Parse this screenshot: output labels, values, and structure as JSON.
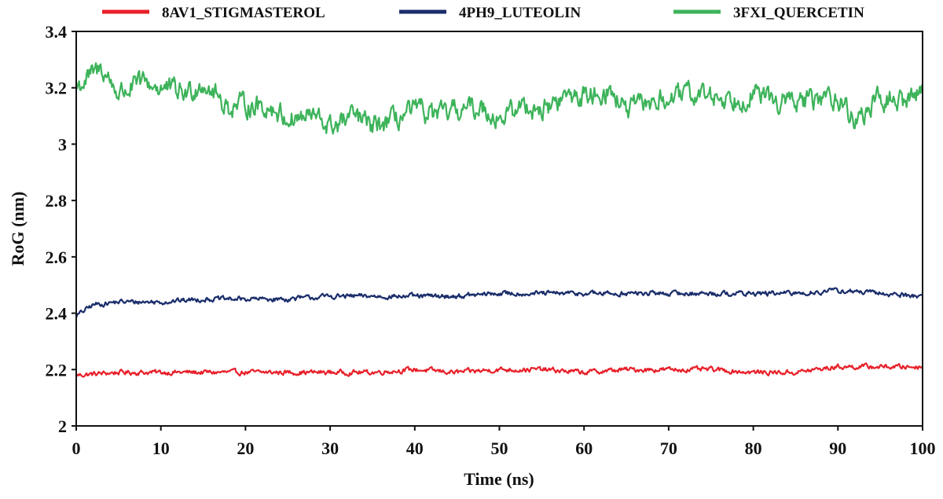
{
  "chart_data": {
    "type": "line",
    "xlabel": "Time (ns)",
    "ylabel": "RoG (nm)",
    "xlim": [
      0,
      100
    ],
    "ylim": [
      2,
      3.4
    ],
    "xticks": [
      "0",
      "10",
      "20",
      "30",
      "40",
      "50",
      "60",
      "70",
      "80",
      "90",
      "100"
    ],
    "yticks": [
      "2",
      "2.2",
      "2.4",
      "2.6",
      "2.8",
      "3",
      "3.2",
      "3.4"
    ],
    "grid": false,
    "legend_position": "top",
    "series": [
      {
        "name": "8AV1_STIGMASTEROL",
        "color": "#e8202a",
        "x": [
          0,
          5,
          10,
          15,
          20,
          25,
          30,
          35,
          40,
          45,
          50,
          55,
          60,
          65,
          70,
          75,
          80,
          85,
          90,
          95,
          100
        ],
        "y": [
          2.18,
          2.19,
          2.19,
          2.19,
          2.19,
          2.19,
          2.19,
          2.19,
          2.2,
          2.19,
          2.2,
          2.2,
          2.19,
          2.2,
          2.2,
          2.2,
          2.19,
          2.19,
          2.21,
          2.21,
          2.21
        ],
        "noise": 0.008
      },
      {
        "name": "4PH9_LUTEOLIN",
        "color": "#1a2d6b",
        "x": [
          0,
          2,
          5,
          10,
          15,
          20,
          25,
          30,
          35,
          40,
          45,
          50,
          55,
          60,
          65,
          70,
          75,
          80,
          85,
          90,
          95,
          100
        ],
        "y": [
          2.39,
          2.43,
          2.44,
          2.44,
          2.45,
          2.45,
          2.45,
          2.46,
          2.46,
          2.46,
          2.46,
          2.47,
          2.47,
          2.47,
          2.47,
          2.47,
          2.47,
          2.47,
          2.47,
          2.48,
          2.47,
          2.46
        ],
        "noise": 0.008
      },
      {
        "name": "3FXI_QUERCETIN",
        "color": "#3db35a",
        "x": [
          0,
          3,
          5,
          8,
          10,
          13,
          15,
          18,
          20,
          23,
          25,
          28,
          30,
          33,
          35,
          38,
          40,
          43,
          45,
          48,
          50,
          53,
          55,
          58,
          60,
          63,
          65,
          68,
          70,
          73,
          75,
          78,
          80,
          83,
          85,
          88,
          90,
          92,
          95,
          98,
          100
        ],
        "y": [
          3.2,
          3.27,
          3.18,
          3.22,
          3.2,
          3.18,
          3.22,
          3.13,
          3.14,
          3.13,
          3.09,
          3.1,
          3.06,
          3.1,
          3.06,
          3.09,
          3.12,
          3.1,
          3.12,
          3.13,
          3.09,
          3.14,
          3.12,
          3.17,
          3.17,
          3.19,
          3.12,
          3.15,
          3.16,
          3.18,
          3.17,
          3.16,
          3.18,
          3.15,
          3.15,
          3.16,
          3.17,
          3.08,
          3.16,
          3.15,
          3.2
        ],
        "noise": 0.035
      }
    ]
  }
}
